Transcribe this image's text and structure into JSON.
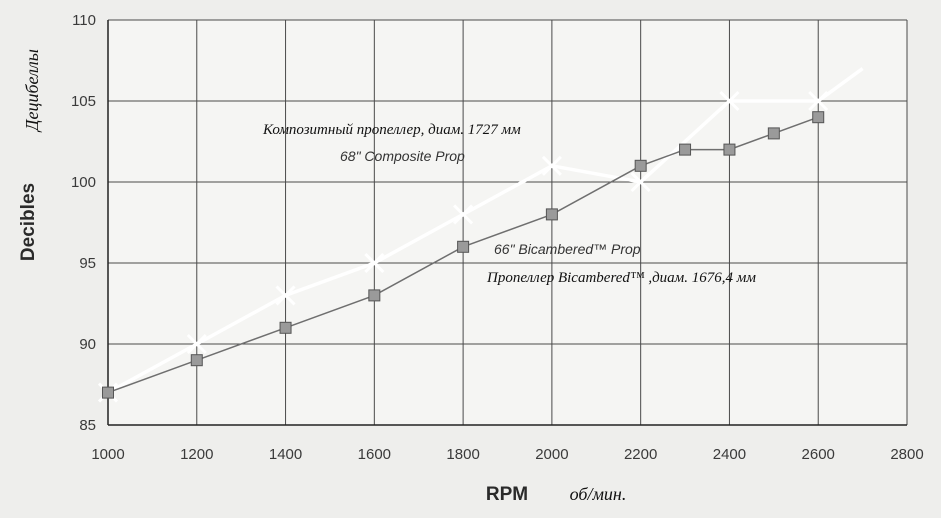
{
  "chart_data": {
    "type": "line",
    "x": [
      1000,
      1200,
      1400,
      1600,
      1800,
      2000,
      2200,
      2300,
      2400,
      2500,
      2600
    ],
    "series": [
      {
        "name": "68\" Composite Prop",
        "name_ru": "Композитный пропеллер, диам. 1727 мм",
        "marker": "x",
        "color": "#ffffff",
        "points": [
          [
            1000,
            87
          ],
          [
            1200,
            90
          ],
          [
            1400,
            93
          ],
          [
            1600,
            95
          ],
          [
            1800,
            98
          ],
          [
            2000,
            101
          ],
          [
            2200,
            100
          ],
          [
            2400,
            105
          ],
          [
            2600,
            105
          ],
          [
            2700,
            107
          ]
        ]
      },
      {
        "name": "66\" Bicambered™ Prop",
        "name_ru": "Пропеллер Bicambered™ ,диам. 1676,4 мм",
        "marker": "square",
        "color": "#7a7a7a",
        "points": [
          [
            1000,
            87
          ],
          [
            1200,
            89
          ],
          [
            1400,
            91
          ],
          [
            1600,
            93
          ],
          [
            1800,
            96
          ],
          [
            2000,
            98
          ],
          [
            2200,
            101
          ],
          [
            2300,
            102
          ],
          [
            2400,
            102
          ],
          [
            2500,
            103
          ],
          [
            2600,
            104
          ]
        ]
      }
    ],
    "xlabel": "RPM",
    "xlabel_ru": "об/мин.",
    "ylabel": "Decibles",
    "ylabel_ru": "Децибеллы",
    "xlim": [
      1000,
      2800
    ],
    "ylim": [
      85,
      110
    ],
    "xticks": [
      "1000",
      "1200",
      "1400",
      "1600",
      "1800",
      "2000",
      "2200",
      "2400",
      "2600",
      "2800"
    ],
    "yticks": [
      "85",
      "90",
      "95",
      "100",
      "105",
      "110"
    ],
    "grid": true,
    "legend": "inline labels"
  }
}
